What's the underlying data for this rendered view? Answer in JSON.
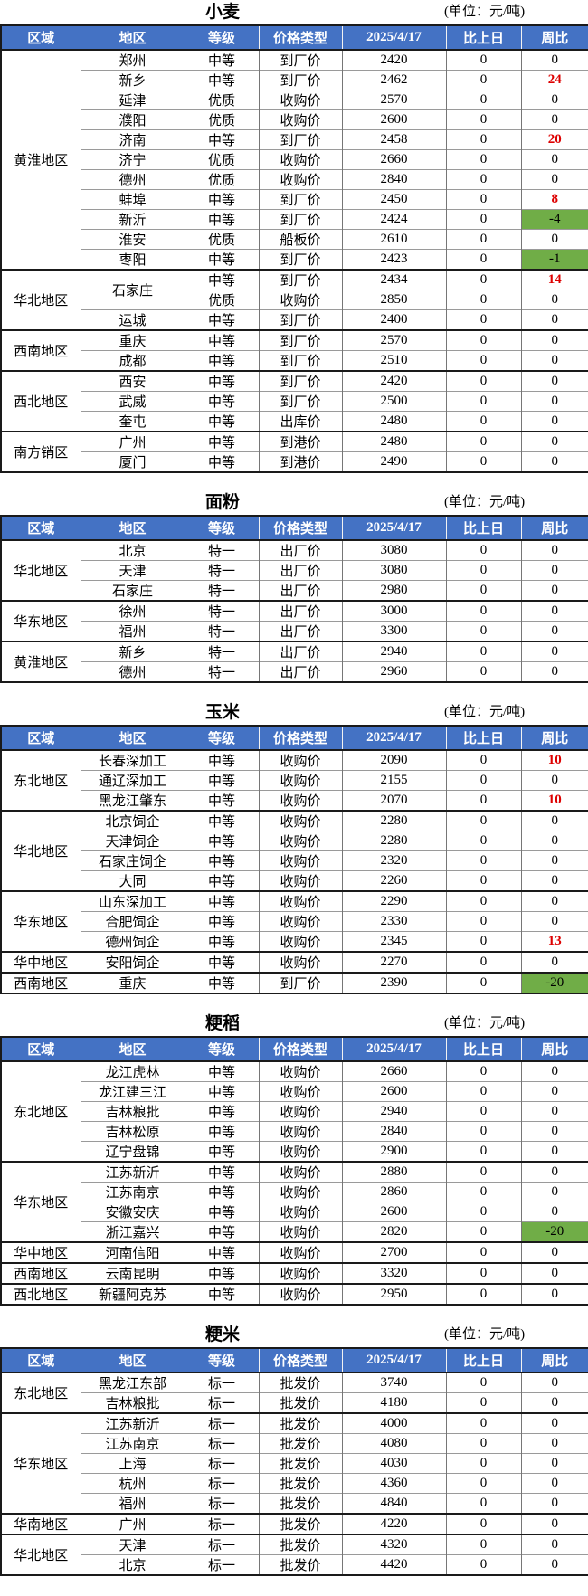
{
  "unit_label": "(单位：元/吨)",
  "columns": [
    "区域",
    "地区",
    "等级",
    "价格类型",
    "2025/4/17",
    "比上日",
    "周比"
  ],
  "colors": {
    "header_bg": "#4472c4",
    "header_text": "#ffffff",
    "positive_week_red": "#dd0000",
    "negative_week_green_bg": "#70ad47",
    "border_dark": "#1a1a1a",
    "border_light": "#9a9a9a"
  },
  "tables": [
    {
      "title": "小麦",
      "regions": [
        {
          "name": "黄淮地区",
          "rows": [
            {
              "area": "郑州",
              "grade": "中等",
              "price_type": "到厂价",
              "price": "2420",
              "day_change": "0",
              "week_change": "0"
            },
            {
              "area": "新乡",
              "grade": "中等",
              "price_type": "到厂价",
              "price": "2462",
              "day_change": "0",
              "week_change": "24",
              "week_style": "red"
            },
            {
              "area": "延津",
              "grade": "优质",
              "price_type": "收购价",
              "price": "2570",
              "day_change": "0",
              "week_change": "0"
            },
            {
              "area": "濮阳",
              "grade": "优质",
              "price_type": "收购价",
              "price": "2600",
              "day_change": "0",
              "week_change": "0"
            },
            {
              "area": "济南",
              "grade": "中等",
              "price_type": "到厂价",
              "price": "2458",
              "day_change": "0",
              "week_change": "20",
              "week_style": "red"
            },
            {
              "area": "济宁",
              "grade": "优质",
              "price_type": "收购价",
              "price": "2660",
              "day_change": "0",
              "week_change": "0"
            },
            {
              "area": "德州",
              "grade": "优质",
              "price_type": "收购价",
              "price": "2840",
              "day_change": "0",
              "week_change": "0"
            },
            {
              "area": "蚌埠",
              "grade": "中等",
              "price_type": "到厂价",
              "price": "2450",
              "day_change": "0",
              "week_change": "8",
              "week_style": "red"
            },
            {
              "area": "新沂",
              "grade": "中等",
              "price_type": "到厂价",
              "price": "2424",
              "day_change": "0",
              "week_change": "-4",
              "week_style": "green"
            },
            {
              "area": "淮安",
              "grade": "优质",
              "price_type": "船板价",
              "price": "2610",
              "day_change": "0",
              "week_change": "0"
            },
            {
              "area": "枣阳",
              "grade": "中等",
              "price_type": "到厂价",
              "price": "2423",
              "day_change": "0",
              "week_change": "-1",
              "week_style": "green"
            }
          ]
        },
        {
          "name": "华北地区",
          "rows": [
            {
              "area": "石家庄",
              "area_rowspan": 2,
              "grade": "中等",
              "price_type": "到厂价",
              "price": "2434",
              "day_change": "0",
              "week_change": "14",
              "week_style": "red"
            },
            {
              "grade": "优质",
              "price_type": "收购价",
              "price": "2850",
              "day_change": "0",
              "week_change": "0"
            },
            {
              "area": "运城",
              "grade": "中等",
              "price_type": "到厂价",
              "price": "2400",
              "day_change": "0",
              "week_change": "0"
            }
          ]
        },
        {
          "name": "西南地区",
          "rows": [
            {
              "area": "重庆",
              "grade": "中等",
              "price_type": "到厂价",
              "price": "2570",
              "day_change": "0",
              "week_change": "0"
            },
            {
              "area": "成都",
              "grade": "中等",
              "price_type": "到厂价",
              "price": "2510",
              "day_change": "0",
              "week_change": "0"
            }
          ]
        },
        {
          "name": "西北地区",
          "rows": [
            {
              "area": "西安",
              "grade": "中等",
              "price_type": "到厂价",
              "price": "2420",
              "day_change": "0",
              "week_change": "0"
            },
            {
              "area": "武威",
              "grade": "中等",
              "price_type": "到厂价",
              "price": "2500",
              "day_change": "0",
              "week_change": "0"
            },
            {
              "area": "奎屯",
              "grade": "中等",
              "price_type": "出库价",
              "price": "2480",
              "day_change": "0",
              "week_change": "0"
            }
          ]
        },
        {
          "name": "南方销区",
          "rows": [
            {
              "area": "广州",
              "grade": "中等",
              "price_type": "到港价",
              "price": "2480",
              "day_change": "0",
              "week_change": "0"
            },
            {
              "area": "厦门",
              "grade": "中等",
              "price_type": "到港价",
              "price": "2490",
              "day_change": "0",
              "week_change": "0"
            }
          ]
        }
      ]
    },
    {
      "title": "面粉",
      "regions": [
        {
          "name": "华北地区",
          "rows": [
            {
              "area": "北京",
              "grade": "特一",
              "price_type": "出厂价",
              "price": "3080",
              "day_change": "0",
              "week_change": "0"
            },
            {
              "area": "天津",
              "grade": "特一",
              "price_type": "出厂价",
              "price": "3080",
              "day_change": "0",
              "week_change": "0"
            },
            {
              "area": "石家庄",
              "grade": "特一",
              "price_type": "出厂价",
              "price": "2980",
              "day_change": "0",
              "week_change": "0"
            }
          ]
        },
        {
          "name": "华东地区",
          "rows": [
            {
              "area": "徐州",
              "grade": "特一",
              "price_type": "出厂价",
              "price": "3000",
              "day_change": "0",
              "week_change": "0"
            },
            {
              "area": "福州",
              "grade": "特一",
              "price_type": "出厂价",
              "price": "3300",
              "day_change": "0",
              "week_change": "0"
            }
          ]
        },
        {
          "name": "黄淮地区",
          "rows": [
            {
              "area": "新乡",
              "grade": "特一",
              "price_type": "出厂价",
              "price": "2940",
              "day_change": "0",
              "week_change": "0"
            },
            {
              "area": "德州",
              "grade": "特一",
              "price_type": "出厂价",
              "price": "2960",
              "day_change": "0",
              "week_change": "0"
            }
          ]
        }
      ]
    },
    {
      "title": "玉米",
      "regions": [
        {
          "name": "东北地区",
          "rows": [
            {
              "area": "长春深加工",
              "grade": "中等",
              "price_type": "收购价",
              "price": "2090",
              "day_change": "0",
              "week_change": "10",
              "week_style": "red"
            },
            {
              "area": "通辽深加工",
              "grade": "中等",
              "price_type": "收购价",
              "price": "2155",
              "day_change": "0",
              "week_change": "0"
            },
            {
              "area": "黑龙江肇东",
              "grade": "中等",
              "price_type": "收购价",
              "price": "2070",
              "day_change": "0",
              "week_change": "10",
              "week_style": "red"
            }
          ]
        },
        {
          "name": "华北地区",
          "rows": [
            {
              "area": "北京饲企",
              "grade": "中等",
              "price_type": "收购价",
              "price": "2280",
              "day_change": "0",
              "week_change": "0"
            },
            {
              "area": "天津饲企",
              "grade": "中等",
              "price_type": "收购价",
              "price": "2280",
              "day_change": "0",
              "week_change": "0"
            },
            {
              "area": "石家庄饲企",
              "grade": "中等",
              "price_type": "收购价",
              "price": "2320",
              "day_change": "0",
              "week_change": "0"
            },
            {
              "area": "大同",
              "grade": "中等",
              "price_type": "收购价",
              "price": "2260",
              "day_change": "0",
              "week_change": "0"
            }
          ]
        },
        {
          "name": "华东地区",
          "rows": [
            {
              "area": "山东深加工",
              "grade": "中等",
              "price_type": "收购价",
              "price": "2290",
              "day_change": "0",
              "week_change": "0"
            },
            {
              "area": "合肥饲企",
              "grade": "中等",
              "price_type": "收购价",
              "price": "2330",
              "day_change": "0",
              "week_change": "0"
            },
            {
              "area": "德州饲企",
              "grade": "中等",
              "price_type": "收购价",
              "price": "2345",
              "day_change": "0",
              "week_change": "13",
              "week_style": "red"
            }
          ]
        },
        {
          "name": "华中地区",
          "rows": [
            {
              "area": "安阳饲企",
              "grade": "中等",
              "price_type": "收购价",
              "price": "2270",
              "day_change": "0",
              "week_change": "0"
            }
          ]
        },
        {
          "name": "西南地区",
          "rows": [
            {
              "area": "重庆",
              "grade": "中等",
              "price_type": "到厂价",
              "price": "2390",
              "day_change": "0",
              "week_change": "-20",
              "week_style": "green"
            }
          ]
        }
      ]
    },
    {
      "title": "粳稻",
      "regions": [
        {
          "name": "东北地区",
          "rows": [
            {
              "area": "龙江虎林",
              "grade": "中等",
              "price_type": "收购价",
              "price": "2660",
              "day_change": "0",
              "week_change": "0"
            },
            {
              "area": "龙江建三江",
              "grade": "中等",
              "price_type": "收购价",
              "price": "2600",
              "day_change": "0",
              "week_change": "0"
            },
            {
              "area": "吉林粮批",
              "grade": "中等",
              "price_type": "收购价",
              "price": "2940",
              "day_change": "0",
              "week_change": "0"
            },
            {
              "area": "吉林松原",
              "grade": "中等",
              "price_type": "收购价",
              "price": "2840",
              "day_change": "0",
              "week_change": "0"
            },
            {
              "area": "辽宁盘锦",
              "grade": "中等",
              "price_type": "收购价",
              "price": "2900",
              "day_change": "0",
              "week_change": "0"
            }
          ]
        },
        {
          "name": "华东地区",
          "rows": [
            {
              "area": "江苏新沂",
              "grade": "中等",
              "price_type": "收购价",
              "price": "2880",
              "day_change": "0",
              "week_change": "0"
            },
            {
              "area": "江苏南京",
              "grade": "中等",
              "price_type": "收购价",
              "price": "2860",
              "day_change": "0",
              "week_change": "0"
            },
            {
              "area": "安徽安庆",
              "grade": "中等",
              "price_type": "收购价",
              "price": "2600",
              "day_change": "0",
              "week_change": "0"
            },
            {
              "area": "浙江嘉兴",
              "grade": "中等",
              "price_type": "收购价",
              "price": "2820",
              "day_change": "0",
              "week_change": "-20",
              "week_style": "green"
            }
          ]
        },
        {
          "name": "华中地区",
          "rows": [
            {
              "area": "河南信阳",
              "grade": "中等",
              "price_type": "收购价",
              "price": "2700",
              "day_change": "0",
              "week_change": "0"
            }
          ]
        },
        {
          "name": "西南地区",
          "rows": [
            {
              "area": "云南昆明",
              "grade": "中等",
              "price_type": "收购价",
              "price": "3320",
              "day_change": "0",
              "week_change": "0"
            }
          ]
        },
        {
          "name": "西北地区",
          "rows": [
            {
              "area": "新疆阿克苏",
              "grade": "中等",
              "price_type": "收购价",
              "price": "2950",
              "day_change": "0",
              "week_change": "0"
            }
          ]
        }
      ]
    },
    {
      "title": "粳米",
      "regions": [
        {
          "name": "东北地区",
          "rows": [
            {
              "area": "黑龙江东部",
              "grade": "标一",
              "price_type": "批发价",
              "price": "3740",
              "day_change": "0",
              "week_change": "0"
            },
            {
              "area": "吉林粮批",
              "grade": "标一",
              "price_type": "批发价",
              "price": "4180",
              "day_change": "0",
              "week_change": "0"
            }
          ]
        },
        {
          "name": "华东地区",
          "rows": [
            {
              "area": "江苏新沂",
              "grade": "标一",
              "price_type": "批发价",
              "price": "4000",
              "day_change": "0",
              "week_change": "0"
            },
            {
              "area": "江苏南京",
              "grade": "标一",
              "price_type": "批发价",
              "price": "4080",
              "day_change": "0",
              "week_change": "0"
            },
            {
              "area": "上海",
              "grade": "标一",
              "price_type": "批发价",
              "price": "4030",
              "day_change": "0",
              "week_change": "0"
            },
            {
              "area": "杭州",
              "grade": "标一",
              "price_type": "批发价",
              "price": "4360",
              "day_change": "0",
              "week_change": "0"
            },
            {
              "area": "福州",
              "grade": "标一",
              "price_type": "批发价",
              "price": "4840",
              "day_change": "0",
              "week_change": "0"
            }
          ]
        },
        {
          "name": "华南地区",
          "rows": [
            {
              "area": "广州",
              "grade": "标一",
              "price_type": "批发价",
              "price": "4220",
              "day_change": "0",
              "week_change": "0"
            }
          ]
        },
        {
          "name": "华北地区",
          "rows": [
            {
              "area": "天津",
              "grade": "标一",
              "price_type": "批发价",
              "price": "4320",
              "day_change": "0",
              "week_change": "0"
            },
            {
              "area": "北京",
              "grade": "标一",
              "price_type": "批发价",
              "price": "4420",
              "day_change": "0",
              "week_change": "0"
            }
          ]
        }
      ]
    }
  ]
}
